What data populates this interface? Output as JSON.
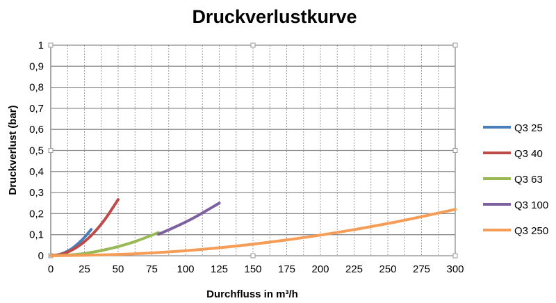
{
  "chart_data": {
    "type": "line",
    "title": "Druckverlustkurve",
    "xlabel": "Durchfluss in m³/h",
    "ylabel": "Druckverlust (bar)",
    "xlim": [
      0,
      300
    ],
    "ylim": [
      0,
      1
    ],
    "x_ticks": [
      "0",
      "25",
      "50",
      "75",
      "100",
      "125",
      "150",
      "175",
      "200",
      "225",
      "250",
      "275",
      "300"
    ],
    "y_ticks": [
      "0",
      "0,1",
      "0,2",
      "0,3",
      "0,4",
      "0,5",
      "0,6",
      "0,7",
      "0,8",
      "0,9",
      "1"
    ],
    "grid": {
      "x_minor_dashed": true,
      "y_major": true
    },
    "legend": "right",
    "series": [
      {
        "name": "Q3 25",
        "color": "#4a7ebb",
        "x": [
          0,
          5,
          10,
          15,
          20,
          25,
          30
        ],
        "y": [
          0,
          0.0035,
          0.014,
          0.031,
          0.056,
          0.087,
          0.125
        ]
      },
      {
        "name": "Q3 40",
        "color": "#be4b48",
        "x": [
          0,
          10,
          20,
          30,
          40,
          50
        ],
        "y": [
          0,
          0.011,
          0.043,
          0.096,
          0.171,
          0.267
        ]
      },
      {
        "name": "Q3 63",
        "color": "#98b954",
        "x": [
          0,
          20,
          40,
          60,
          80
        ],
        "y": [
          0,
          0.007,
          0.028,
          0.062,
          0.11
        ]
      },
      {
        "name": "Q3 100",
        "color": "#7d60a0",
        "x": [
          80,
          90,
          100,
          110,
          125
        ],
        "y": [
          0.102,
          0.13,
          0.16,
          0.194,
          0.25
        ]
      },
      {
        "name": "Q3 250",
        "color": "#f59d56",
        "x": [
          0,
          50,
          100,
          150,
          200,
          250,
          300
        ],
        "y": [
          0,
          0.006,
          0.024,
          0.055,
          0.098,
          0.153,
          0.22
        ]
      }
    ]
  }
}
